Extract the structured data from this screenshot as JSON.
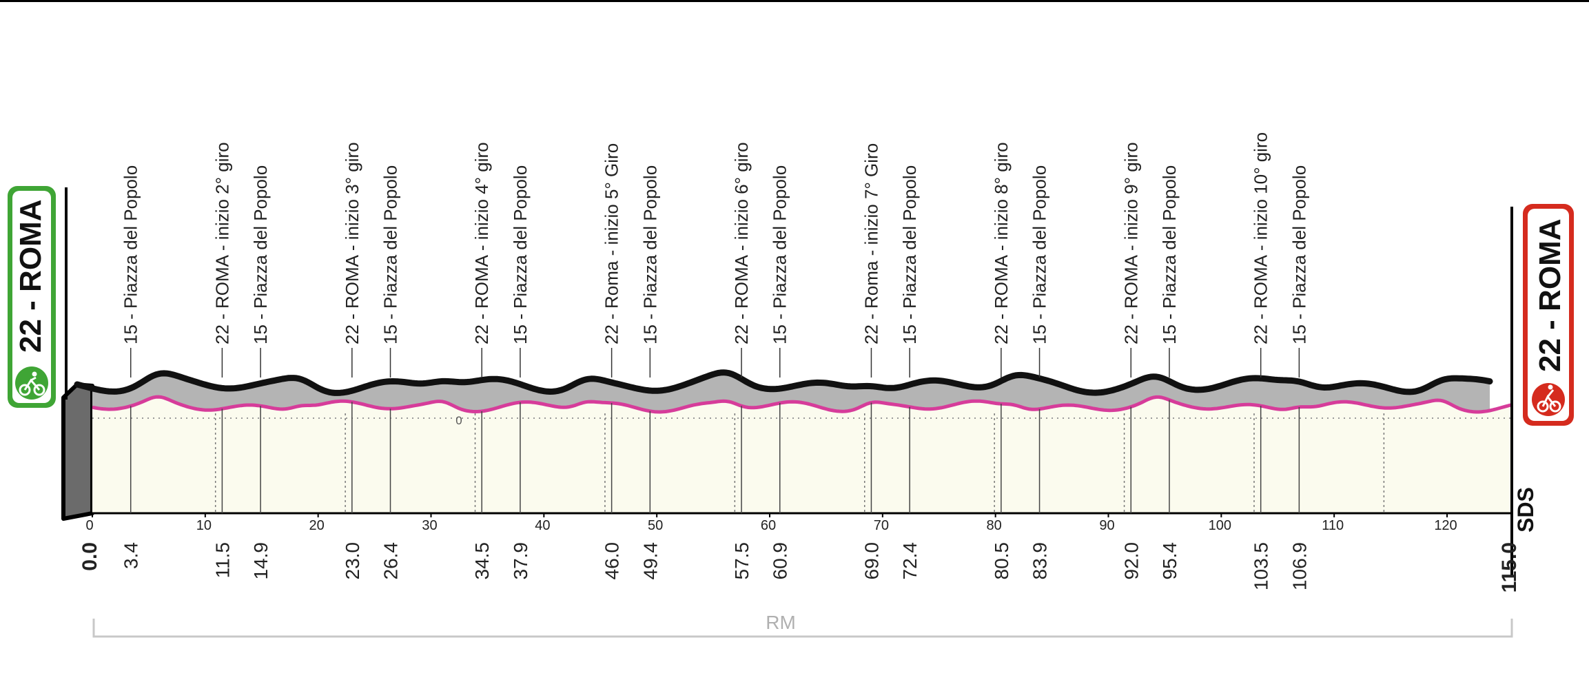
{
  "chart_data": {
    "type": "area",
    "title": "",
    "xlabel": "",
    "ylabel": "",
    "x_axis": {
      "min": 0,
      "max": 126,
      "tick_values": [
        0,
        10,
        20,
        30,
        40,
        50,
        60,
        70,
        80,
        90,
        100,
        110,
        120
      ],
      "tick_labels": [
        "0",
        "10",
        "20",
        "30",
        "40",
        "50",
        "60",
        "70",
        "80",
        "90",
        "100",
        "110",
        "120"
      ]
    },
    "y_axis": {
      "marker_label": "0"
    },
    "start": {
      "label": "22 - ROMA",
      "km": "0.0"
    },
    "finish": {
      "label": "22 - ROMA",
      "km": "115.0"
    },
    "region_label": "RM",
    "brand": "SDS",
    "km_markers": [
      "0.0",
      "3.4",
      "11.5",
      "14.9",
      "23.0",
      "26.4",
      "34.5",
      "37.9",
      "46.0",
      "49.4",
      "57.5",
      "60.9",
      "69.0",
      "72.4",
      "80.5",
      "83.9",
      "92.0",
      "95.4",
      "103.5",
      "106.9",
      "115.0"
    ],
    "points": [
      {
        "label": "15 - Piazza del Popolo",
        "km": 3.4
      },
      {
        "label": "22 - ROMA - inizio 2° giro",
        "km": 11.5
      },
      {
        "label": "15 - Piazza del Popolo",
        "km": 14.9
      },
      {
        "label": "22 - ROMA - inizio 3° giro",
        "km": 23.0
      },
      {
        "label": "15 - Piazza del Popolo",
        "km": 26.4
      },
      {
        "label": "22 - ROMA - inizio 4° giro",
        "km": 34.5
      },
      {
        "label": "15 - Piazza del Popolo",
        "km": 37.9
      },
      {
        "label": "22 - Roma - inizio 5° Giro",
        "km": 46.0
      },
      {
        "label": "15 - Piazza del Popolo",
        "km": 49.4
      },
      {
        "label": "22 - ROMA - inizio 6° giro",
        "km": 57.5
      },
      {
        "label": "15 - Piazza del Popolo",
        "km": 60.9
      },
      {
        "label": "22 - Roma - inizio 7° Giro",
        "km": 69.0
      },
      {
        "label": "15 - Piazza del Popolo",
        "km": 72.4
      },
      {
        "label": "22 - ROMA - inizio 8° giro",
        "km": 80.5
      },
      {
        "label": "15 - Piazza del Popolo",
        "km": 83.9
      },
      {
        "label": "22 - ROMA - inizio 9° giro",
        "km": 92.0
      },
      {
        "label": "15 - Piazza del Popolo",
        "km": 95.4
      },
      {
        "label": "22 - ROMA - inizio 10° giro",
        "km": 103.5
      },
      {
        "label": "15 - Piazza del Popolo",
        "km": 106.9
      }
    ],
    "colors": {
      "profile_line": "#d63c9a",
      "profile_fill": "#fbfbee",
      "profile_top": "#b4b4b4",
      "start_badge": "#3fa535",
      "finish_badge": "#d52b1e",
      "region_bar": "#c8c8c8"
    }
  }
}
